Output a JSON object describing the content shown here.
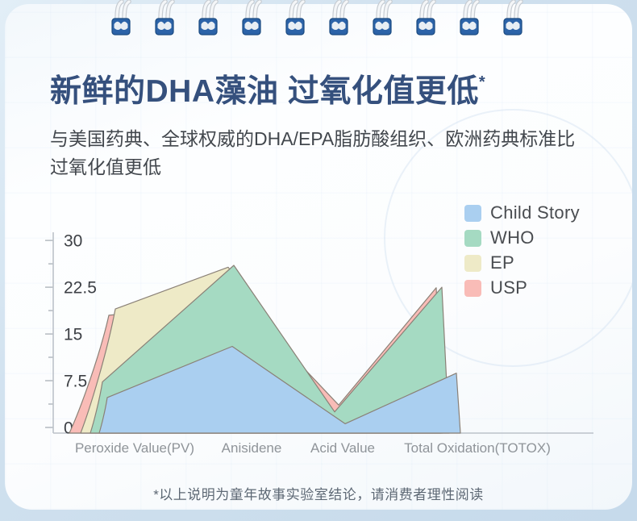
{
  "page": {
    "title": "新鲜的DHA藻油 过氧化值更低",
    "title_superscript": "*",
    "subtitle_line1": "与美国药典、全球权威的DHA/EPA脂肪酸组织、欧洲药典标准比",
    "subtitle_line2": "过氧化值更低",
    "footnote": "*以上说明为童年故事实验室结论，请消费者理性阅读"
  },
  "chart_data": {
    "type": "area",
    "categories": [
      "Peroxide Value(PV)",
      "Anisidene",
      "Acid Value",
      "Total Oxidation(TOTOX)"
    ],
    "series": [
      {
        "name": "Child Story",
        "color": "#aacff0",
        "values": [
          4.8,
          13,
          0.6,
          8.7
        ]
      },
      {
        "name": "WHO",
        "color": "#a5dac2",
        "values": [
          7.3,
          26,
          2.5,
          22.5
        ]
      },
      {
        "name": "EP",
        "color": "#eeeac7",
        "values": [
          19,
          25.7,
          2.2,
          19
        ]
      },
      {
        "name": "USP",
        "color": "#f9bcb7",
        "values": [
          18,
          20,
          3.6,
          22.4
        ]
      }
    ],
    "ylim": [
      0,
      30
    ],
    "yticks": [
      0,
      7.5,
      15,
      22.5,
      30
    ],
    "ytick_labels": [
      "0",
      "7.5",
      "15",
      "22.5",
      "30"
    ],
    "grid": "off",
    "legend_position": "right"
  },
  "colors": {
    "title": "#35507d",
    "binder_blue": "#2c63a8",
    "axis_line": "#bcc2c9",
    "tick": "#a9b0b7",
    "edge_stroke": "#8a8177",
    "x_label": "#8f9499",
    "y_label": "#3d4045",
    "outer_background": "#cfe0ee"
  }
}
